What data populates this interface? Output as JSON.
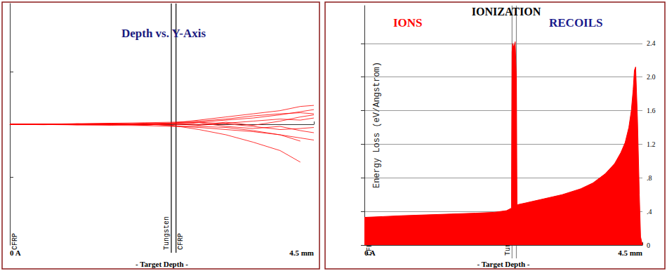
{
  "chart_data": [
    {
      "type": "line",
      "title": "Depth vs. Y-Axis",
      "xlabel": "- Target Depth -",
      "color": "#ff0000",
      "xlim": [
        0,
        4.5
      ],
      "xticks": [
        {
          "value": 0,
          "label": "0 A"
        },
        {
          "value": 4.5,
          "label": "4.5 mm"
        }
      ],
      "ylim": [
        -1.15,
        1.15
      ],
      "yticks": [
        -0.5,
        0,
        0.5
      ],
      "tick_labels": "x",
      "layers": [
        {
          "label": "CFRP",
          "start": 0,
          "end": 2.39
        },
        {
          "label": "Tungsten",
          "start": 2.39,
          "end": 2.46
        },
        {
          "label": "CFRP",
          "start": 2.46,
          "end": 4.5
        }
      ],
      "x": [
        0,
        0.5,
        1,
        1.5,
        2,
        2.4,
        2.8,
        3.2,
        3.6,
        4,
        4.3,
        4.5
      ],
      "series": [
        {
          "values": [
            0,
            0.002,
            -0.004,
            0.008,
            -0.01,
            0.012,
            0.02,
            0.04,
            0.06,
            0.09,
            0.12,
            0.14
          ]
        },
        {
          "values": [
            0,
            -0.003,
            0.005,
            -0.006,
            0.01,
            -0.015,
            -0.03,
            -0.05,
            -0.07,
            -0.1,
            -0.13,
            -0.15
          ]
        },
        {
          "values": [
            0,
            0.001,
            0.006,
            0.01,
            0.015,
            0.02,
            0.03,
            0.05,
            0.08,
            0.1,
            0.11,
            0.1
          ]
        },
        {
          "values": [
            0,
            -0.002,
            -0.006,
            -0.01,
            -0.012,
            -0.02,
            -0.02,
            -0.03,
            -0.06,
            -0.1,
            -0.16,
            null
          ]
        },
        {
          "values": [
            0,
            0.002,
            -0.003,
            0.005,
            0,
            -0.01,
            -0.05,
            -0.1,
            -0.17,
            -0.25,
            -0.36,
            null
          ]
        },
        {
          "values": [
            0,
            0.003,
            0.002,
            -0.004,
            0.008,
            0.01,
            0.04,
            0.07,
            0.1,
            0.13,
            0.17,
            0.18
          ]
        },
        {
          "values": [
            0,
            -0.001,
            0.004,
            0.002,
            -0.008,
            0.005,
            -0.01,
            0.01,
            0.03,
            0.05,
            0.04,
            0.06
          ]
        },
        {
          "values": [
            0,
            0.002,
            -0.005,
            -0.003,
            0.006,
            -0.008,
            0.015,
            -0.02,
            -0.04,
            -0.02,
            -0.06,
            -0.08
          ]
        },
        {
          "values": [
            0,
            -0.004,
            0.003,
            0.009,
            0.004,
            0.012,
            -0.005,
            0.02,
            -0.01,
            0.03,
            0.07,
            0.09
          ]
        },
        {
          "values": [
            0,
            0.001,
            -0.002,
            0.004,
            -0.005,
            0.01,
            0.02,
            0.005,
            -0.02,
            -0.05,
            -0.04,
            -0.03
          ]
        }
      ]
    },
    {
      "type": "area",
      "title": "IONIZATION",
      "annotations": [
        "IONS",
        "RECOILS"
      ],
      "ylabel": "Energy Loss (eV/Angstrom)",
      "xlabel": "- Target Depth -",
      "color": "#ff0000",
      "grid": true,
      "xlim": [
        0,
        4.5
      ],
      "xticks": [
        {
          "value": 0,
          "label": "0 A"
        },
        {
          "value": 4.5,
          "label": "4.5 mm"
        }
      ],
      "ylim": [
        0,
        2.85
      ],
      "yticks": [
        0,
        {
          "value": 0.4,
          "label": ".4"
        },
        {
          "value": 0.8,
          "label": ".8"
        },
        1.2,
        1.6,
        {
          "value": 2,
          "label": "2.0"
        },
        2.4
      ],
      "layers": [
        {
          "label": "CFRP",
          "start": 0,
          "end": 2.39
        },
        {
          "label": "Tungsten",
          "start": 2.39,
          "end": 2.46
        }
      ],
      "x": [
        0,
        0.3,
        0.6,
        1.0,
        1.4,
        1.8,
        2.1,
        2.3,
        2.38,
        2.39,
        2.4,
        2.42,
        2.44,
        2.46,
        2.47,
        2.6,
        2.9,
        3.2,
        3.5,
        3.7,
        3.9,
        4.05,
        4.15,
        4.22,
        4.28,
        4.32,
        4.35,
        4.37,
        4.39,
        4.42,
        4.45,
        4.47,
        4.5
      ],
      "values": [
        0.33,
        0.34,
        0.35,
        0.36,
        0.37,
        0.38,
        0.39,
        0.41,
        0.44,
        2.3,
        2.4,
        2.35,
        2.42,
        2.0,
        0.48,
        0.5,
        0.55,
        0.6,
        0.67,
        0.74,
        0.85,
        0.97,
        1.1,
        1.22,
        1.4,
        1.6,
        1.85,
        2.08,
        2.12,
        1.5,
        0.6,
        0.1,
        0
      ]
    }
  ]
}
